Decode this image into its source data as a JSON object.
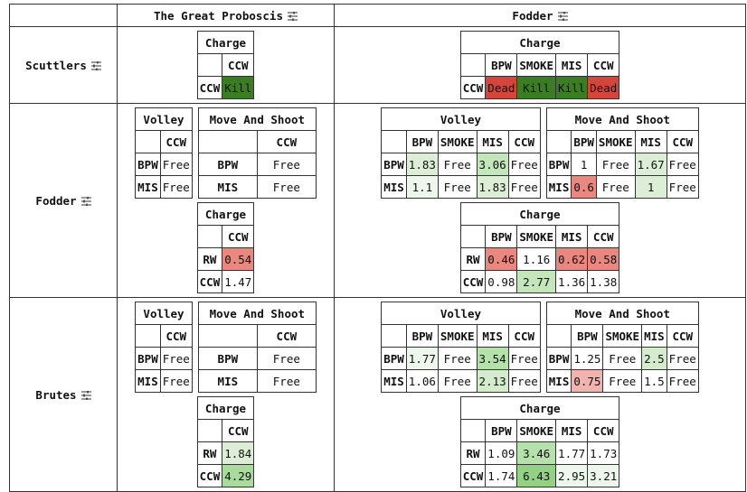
{
  "columns": [
    "The Great Proboscis",
    "Fodder"
  ],
  "rows": [
    {
      "label": "Scuttlers",
      "cells": [
        [
          [
            {
              "title": "Charge",
              "columns": [
                "CCW"
              ],
              "rows": [
                {
                  "label": "CCW",
                  "values": [
                    "Kill"
                  ],
                  "colors": [
                    "#3a7d22"
                  ]
                }
              ]
            }
          ]
        ],
        [
          [
            {
              "title": "Charge",
              "columns": [
                "BPW",
                "SMOKE",
                "MIS",
                "CCW"
              ],
              "rows": [
                {
                  "label": "CCW",
                  "values": [
                    "Dead",
                    "Kill",
                    "Kill",
                    "Dead"
                  ],
                  "colors": [
                    "#d4453b",
                    "#3a7d22",
                    "#3a7d22",
                    "#d4453b"
                  ]
                }
              ]
            }
          ]
        ]
      ]
    },
    {
      "label": "Fodder",
      "cells": [
        [
          [
            {
              "title": "Volley",
              "columns": [
                "CCW"
              ],
              "rows": [
                {
                  "label": "BPW",
                  "values": [
                    "Free"
                  ],
                  "colors": [
                    null
                  ]
                },
                {
                  "label": "MIS",
                  "values": [
                    "Free"
                  ],
                  "colors": [
                    null
                  ]
                }
              ]
            },
            {
              "title": "Move And Shoot",
              "columns": [
                "CCW"
              ],
              "rows": [
                {
                  "label": "BPW",
                  "values": [
                    "Free"
                  ],
                  "colors": [
                    null
                  ]
                },
                {
                  "label": "MIS",
                  "values": [
                    "Free"
                  ],
                  "colors": [
                    null
                  ]
                }
              ]
            }
          ],
          [
            {
              "title": "Charge",
              "columns": [
                "CCW"
              ],
              "rows": [
                {
                  "label": "RW",
                  "values": [
                    "0.54"
                  ],
                  "colors": [
                    "#ea877f"
                  ]
                },
                {
                  "label": "CCW",
                  "values": [
                    "1.47"
                  ],
                  "colors": [
                    null
                  ]
                }
              ]
            }
          ]
        ],
        [
          [
            {
              "title": "Volley",
              "columns": [
                "BPW",
                "SMOKE",
                "MIS",
                "CCW"
              ],
              "rows": [
                {
                  "label": "BPW",
                  "values": [
                    "1.83",
                    "Free",
                    "3.06",
                    "Free"
                  ],
                  "colors": [
                    "#dcefd6",
                    null,
                    "#c3e6bb",
                    null
                  ]
                },
                {
                  "label": "MIS",
                  "values": [
                    "1.1",
                    "Free",
                    "1.83",
                    "Free"
                  ],
                  "colors": [
                    "#eef7eb",
                    null,
                    "#dcefd6",
                    null
                  ]
                }
              ]
            },
            {
              "title": "Move And Shoot",
              "columns": [
                "BPW",
                "SMOKE",
                "MIS",
                "CCW"
              ],
              "rows": [
                {
                  "label": "BPW",
                  "values": [
                    "1",
                    "Free",
                    "1.67",
                    "Free"
                  ],
                  "colors": [
                    null,
                    null,
                    "#dcefd6",
                    null
                  ]
                },
                {
                  "label": "MIS",
                  "values": [
                    "0.6",
                    "Free",
                    "1",
                    "Free"
                  ],
                  "colors": [
                    "#ea877f",
                    null,
                    "#dcefd6",
                    null
                  ]
                }
              ]
            }
          ],
          [
            {
              "title": "Charge",
              "columns": [
                "BPW",
                "SMOKE",
                "MIS",
                "CCW"
              ],
              "rows": [
                {
                  "label": "RW",
                  "values": [
                    "0.46",
                    "1.16",
                    "0.62",
                    "0.58"
                  ],
                  "colors": [
                    "#ea877f",
                    null,
                    "#ea877f",
                    "#ea877f"
                  ]
                },
                {
                  "label": "CCW",
                  "values": [
                    "0.98",
                    "2.77",
                    "1.36",
                    "1.38"
                  ],
                  "colors": [
                    null,
                    "#c3e6bb",
                    null,
                    null
                  ]
                }
              ]
            }
          ]
        ]
      ]
    },
    {
      "label": "Brutes",
      "cells": [
        [
          [
            {
              "title": "Volley",
              "columns": [
                "CCW"
              ],
              "rows": [
                {
                  "label": "BPW",
                  "values": [
                    "Free"
                  ],
                  "colors": [
                    null
                  ]
                },
                {
                  "label": "MIS",
                  "values": [
                    "Free"
                  ],
                  "colors": [
                    null
                  ]
                }
              ]
            },
            {
              "title": "Move And Shoot",
              "columns": [
                "CCW"
              ],
              "rows": [
                {
                  "label": "BPW",
                  "values": [
                    "Free"
                  ],
                  "colors": [
                    null
                  ]
                },
                {
                  "label": "MIS",
                  "values": [
                    "Free"
                  ],
                  "colors": [
                    null
                  ]
                }
              ]
            }
          ],
          [
            {
              "title": "Charge",
              "columns": [
                "CCW"
              ],
              "rows": [
                {
                  "label": "RW",
                  "values": [
                    "1.84"
                  ],
                  "colors": [
                    "#dcefd6"
                  ]
                },
                {
                  "label": "CCW",
                  "values": [
                    "4.29"
                  ],
                  "colors": [
                    "#a9db9d"
                  ]
                }
              ]
            }
          ]
        ],
        [
          [
            {
              "title": "Volley",
              "columns": [
                "BPW",
                "SMOKE",
                "MIS",
                "CCW"
              ],
              "rows": [
                {
                  "label": "BPW",
                  "values": [
                    "1.77",
                    "Free",
                    "3.54",
                    "Free"
                  ],
                  "colors": [
                    "#eef7eb",
                    null,
                    "#b5e1ab",
                    null
                  ]
                },
                {
                  "label": "MIS",
                  "values": [
                    "1.06",
                    "Free",
                    "2.13",
                    "Free"
                  ],
                  "colors": [
                    null,
                    null,
                    "#d3eccc",
                    null
                  ]
                }
              ]
            },
            {
              "title": "Move And Shoot",
              "columns": [
                "BPW",
                "SMOKE",
                "MIS",
                "CCW"
              ],
              "rows": [
                {
                  "label": "BPW",
                  "values": [
                    "1.25",
                    "Free",
                    "2.5",
                    "Free"
                  ],
                  "colors": [
                    null,
                    null,
                    "#d3eccc",
                    null
                  ]
                },
                {
                  "label": "MIS",
                  "values": [
                    "0.75",
                    "Free",
                    "1.5",
                    "Free"
                  ],
                  "colors": [
                    "#f1b3ae",
                    null,
                    null,
                    null
                  ]
                }
              ]
            }
          ],
          [
            {
              "title": "Charge",
              "columns": [
                "BPW",
                "SMOKE",
                "MIS",
                "CCW"
              ],
              "rows": [
                {
                  "label": "RW",
                  "values": [
                    "1.09",
                    "3.46",
                    "1.77",
                    "1.73"
                  ],
                  "colors": [
                    null,
                    "#b5e1ab",
                    null,
                    null
                  ]
                },
                {
                  "label": "CCW",
                  "values": [
                    "1.74",
                    "6.43",
                    "2.95",
                    "3.21"
                  ],
                  "colors": [
                    null,
                    "#93d185",
                    "#eef7eb",
                    "#eef7eb"
                  ]
                }
              ]
            }
          ]
        ]
      ]
    }
  ]
}
